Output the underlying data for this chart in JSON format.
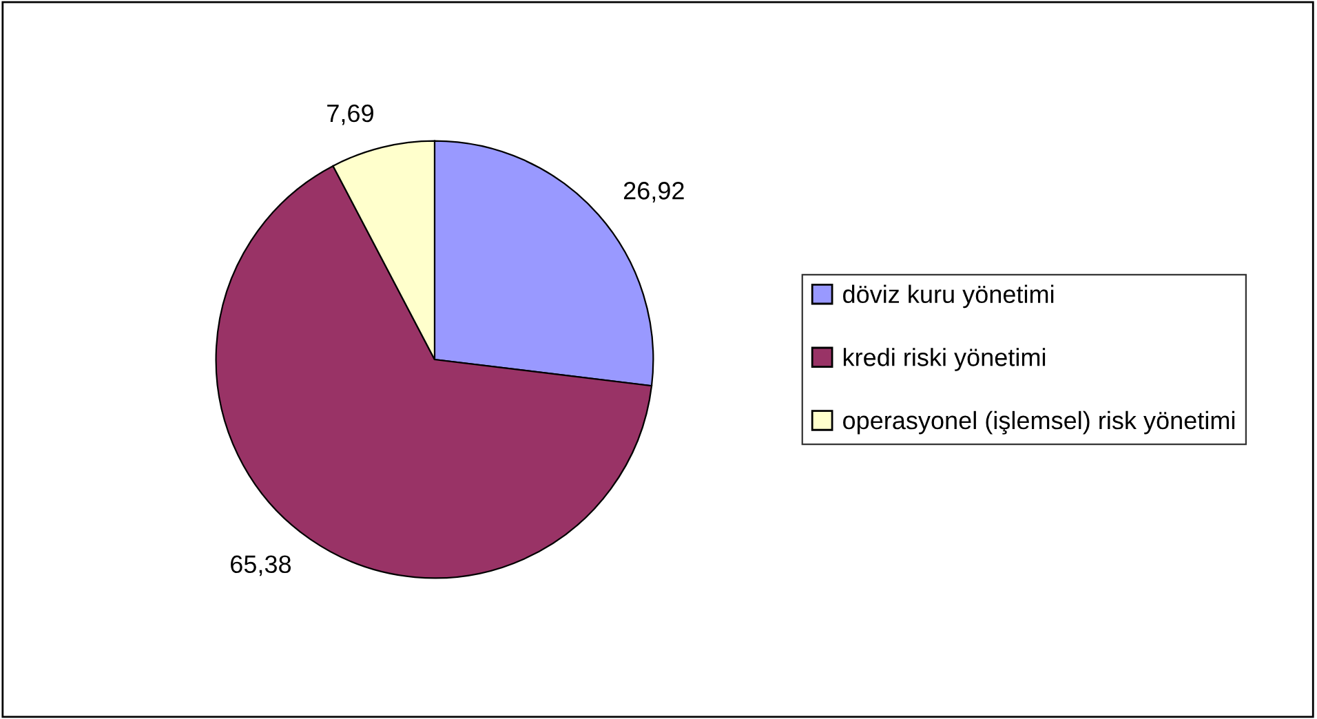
{
  "chart_data": {
    "type": "pie",
    "categories": [
      "döviz kuru yönetimi",
      "kredi riski yönetimi",
      "operasyonel (işlemsel) risk yönetimi"
    ],
    "values": [
      26.92,
      65.38,
      7.69
    ],
    "value_labels": [
      "26,92",
      "65,38",
      "7,69"
    ],
    "colors": [
      "#9999ff",
      "#993366",
      "#ffffcc"
    ],
    "legend": "right"
  }
}
